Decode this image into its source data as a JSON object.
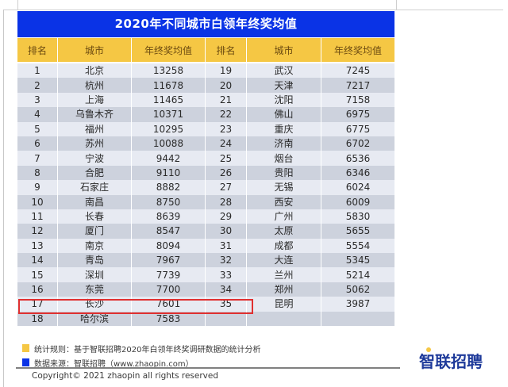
{
  "title": "2020年不同城市白领年终奖均值",
  "headers": [
    "排名",
    "城市",
    "年终奖均值",
    "排名",
    "城市",
    "年终奖均值"
  ],
  "rows": [
    {
      "l": {
        "rank": "1",
        "city": "北京",
        "value": "13258"
      },
      "r": {
        "rank": "19",
        "city": "武汉",
        "value": "7245"
      }
    },
    {
      "l": {
        "rank": "2",
        "city": "杭州",
        "value": "11678"
      },
      "r": {
        "rank": "20",
        "city": "天津",
        "value": "7217"
      }
    },
    {
      "l": {
        "rank": "3",
        "city": "上海",
        "value": "11465"
      },
      "r": {
        "rank": "21",
        "city": "沈阳",
        "value": "7158"
      }
    },
    {
      "l": {
        "rank": "4",
        "city": "乌鲁木齐",
        "value": "10371"
      },
      "r": {
        "rank": "22",
        "city": "佛山",
        "value": "6975"
      }
    },
    {
      "l": {
        "rank": "5",
        "city": "福州",
        "value": "10295"
      },
      "r": {
        "rank": "23",
        "city": "重庆",
        "value": "6775"
      }
    },
    {
      "l": {
        "rank": "6",
        "city": "苏州",
        "value": "10088"
      },
      "r": {
        "rank": "24",
        "city": "济南",
        "value": "6702"
      }
    },
    {
      "l": {
        "rank": "7",
        "city": "宁波",
        "value": "9442"
      },
      "r": {
        "rank": "25",
        "city": "烟台",
        "value": "6536"
      }
    },
    {
      "l": {
        "rank": "8",
        "city": "合肥",
        "value": "9110"
      },
      "r": {
        "rank": "26",
        "city": "贵阳",
        "value": "6346"
      }
    },
    {
      "l": {
        "rank": "9",
        "city": "石家庄",
        "value": "8882"
      },
      "r": {
        "rank": "27",
        "city": "无锡",
        "value": "6024"
      }
    },
    {
      "l": {
        "rank": "10",
        "city": "南昌",
        "value": "8750"
      },
      "r": {
        "rank": "28",
        "city": "西安",
        "value": "6009"
      }
    },
    {
      "l": {
        "rank": "11",
        "city": "长春",
        "value": "8639"
      },
      "r": {
        "rank": "29",
        "city": "广州",
        "value": "5830"
      }
    },
    {
      "l": {
        "rank": "12",
        "city": "厦门",
        "value": "8547"
      },
      "r": {
        "rank": "30",
        "city": "太原",
        "value": "5655"
      }
    },
    {
      "l": {
        "rank": "13",
        "city": "南京",
        "value": "8094"
      },
      "r": {
        "rank": "31",
        "city": "成都",
        "value": "5554"
      }
    },
    {
      "l": {
        "rank": "14",
        "city": "青岛",
        "value": "7967"
      },
      "r": {
        "rank": "32",
        "city": "大连",
        "value": "5345"
      }
    },
    {
      "l": {
        "rank": "15",
        "city": "深圳",
        "value": "7739"
      },
      "r": {
        "rank": "33",
        "city": "兰州",
        "value": "5214"
      }
    },
    {
      "l": {
        "rank": "16",
        "city": "东莞",
        "value": "7700"
      },
      "r": {
        "rank": "34",
        "city": "郑州",
        "value": "5062"
      }
    },
    {
      "l": {
        "rank": "17",
        "city": "长沙",
        "value": "7601"
      },
      "r": {
        "rank": "35",
        "city": "昆明",
        "value": "3987"
      }
    },
    {
      "l": {
        "rank": "18",
        "city": "哈尔滨",
        "value": "7583"
      },
      "r": {
        "rank": "",
        "city": "",
        "value": ""
      }
    }
  ],
  "highlighted_row": {
    "rank": "17",
    "city": "长沙",
    "value": "7601"
  },
  "footer": {
    "rule_label": "统计规则：基于智联招聘2020年白领年终奖调研数据的统计分析",
    "source_label": "数据来源：智联招聘（www.zhaopin.com）",
    "copyright": "Copyright© 2021 zhaopin all rights reserved",
    "logo": "智联招聘"
  },
  "colors": {
    "title_bg": "#0a33e6",
    "header_bg": "#f5c744",
    "row_light": "#e7eaf2",
    "row_dark": "#cdd2dd",
    "highlight_border": "#e03030",
    "legend_yellow": "#f5c744",
    "legend_blue": "#0a33e6",
    "logo_color": "#1e3a9a"
  }
}
